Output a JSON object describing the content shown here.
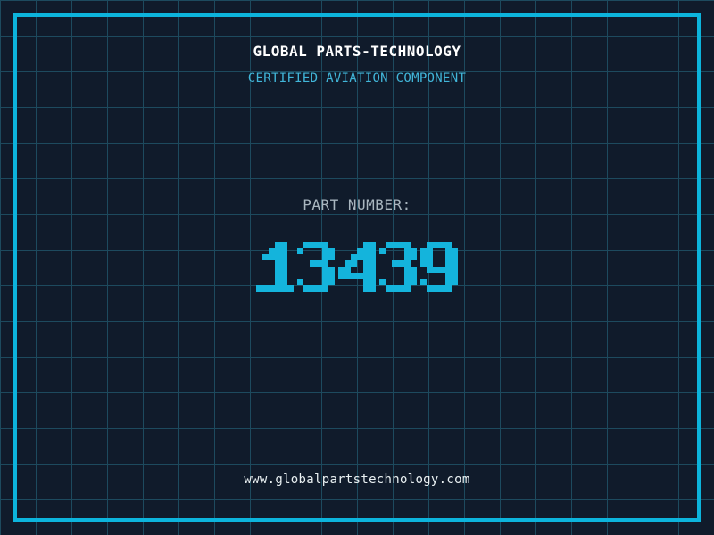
{
  "theme": {
    "background": "#101b2b",
    "grid_line": "#1d4a5e",
    "frame": "#0cb4dc",
    "title_color": "#ffffff",
    "subtitle_color": "#41b6d9",
    "label_color": "#a9b6bf",
    "number_color": "#14b4dc",
    "url_color": "#e9f0f2"
  },
  "certificate": {
    "title": "GLOBAL PARTS-TECHNOLOGY",
    "subtitle": "CERTIFIED AVIATION COMPONENT",
    "part_label": "PART NUMBER:",
    "part_number": "13439",
    "website": "www.globalpartstechnology.com"
  }
}
